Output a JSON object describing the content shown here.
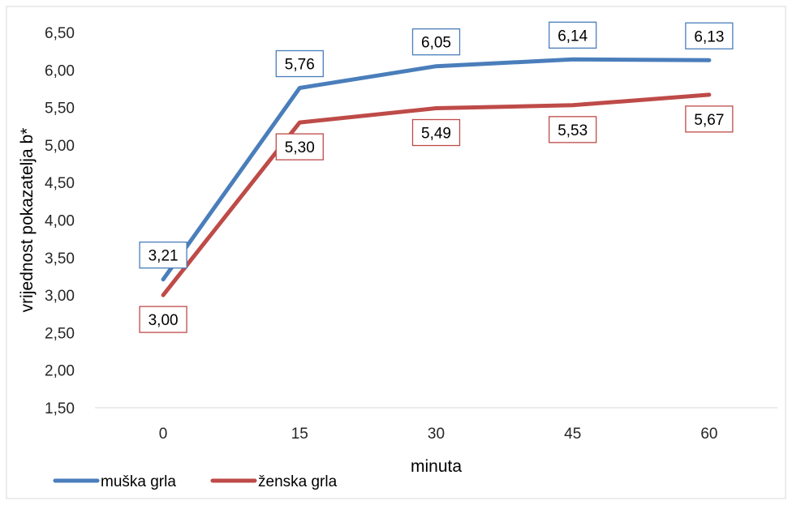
{
  "chart_data": {
    "type": "line",
    "title": "",
    "xlabel": "minuta",
    "ylabel": "vrijednost pokazatelja b*",
    "categories": [
      "0",
      "15",
      "30",
      "45",
      "60"
    ],
    "ylim": [
      1.5,
      6.5
    ],
    "ytick_values": [
      1.5,
      2.0,
      2.5,
      3.0,
      3.5,
      4.0,
      4.5,
      5.0,
      5.5,
      6.0,
      6.5
    ],
    "ytick_labels": [
      "1,50",
      "2,00",
      "2,50",
      "3,00",
      "3,50",
      "4,00",
      "4,50",
      "5,00",
      "5,50",
      "6,00",
      "6,50"
    ],
    "grid": false,
    "legend_position": "bottom-left",
    "series": [
      {
        "name": "muška grla",
        "color": "#4a7ebb",
        "values": [
          3.21,
          5.76,
          6.05,
          6.14,
          6.13
        ],
        "labels": [
          "3,21",
          "5,76",
          "6,05",
          "6,14",
          "6,13"
        ],
        "label_position": "above"
      },
      {
        "name": "ženska grla",
        "color": "#be4b48",
        "values": [
          3.0,
          5.3,
          5.49,
          5.53,
          5.67
        ],
        "labels": [
          "3,00",
          "5,30",
          "5,49",
          "5,53",
          "5,67"
        ],
        "label_position": "below"
      }
    ]
  }
}
